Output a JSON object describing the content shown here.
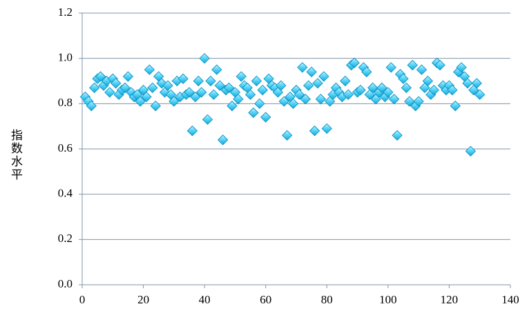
{
  "chart_data": {
    "type": "scatter",
    "y_label": "指数水平",
    "x": [
      1,
      2,
      3,
      4,
      5,
      6,
      7,
      8,
      9,
      10,
      11,
      12,
      13,
      14,
      15,
      16,
      17,
      18,
      19,
      20,
      21,
      22,
      23,
      24,
      25,
      26,
      27,
      28,
      29,
      30,
      31,
      32,
      33,
      34,
      35,
      36,
      37,
      38,
      39,
      40,
      41,
      42,
      43,
      44,
      45,
      46,
      47,
      48,
      49,
      50,
      51,
      52,
      53,
      54,
      55,
      56,
      57,
      58,
      59,
      60,
      61,
      62,
      63,
      64,
      65,
      66,
      67,
      68,
      69,
      70,
      71,
      72,
      73,
      74,
      75,
      76,
      77,
      78,
      79,
      80,
      81,
      82,
      83,
      84,
      85,
      86,
      87,
      88,
      89,
      90,
      91,
      92,
      93,
      94,
      95,
      96,
      97,
      98,
      99,
      100,
      101,
      102,
      103,
      104,
      105,
      106,
      107,
      108,
      109,
      110,
      111,
      112,
      113,
      114,
      115,
      116,
      117,
      118,
      119,
      120,
      121,
      122,
      123,
      124,
      125,
      126,
      127,
      128,
      129,
      130
    ],
    "values": [
      0.83,
      0.81,
      0.79,
      0.87,
      0.91,
      0.92,
      0.88,
      0.9,
      0.85,
      0.91,
      0.89,
      0.84,
      0.86,
      0.87,
      0.92,
      0.85,
      0.83,
      0.84,
      0.81,
      0.86,
      0.83,
      0.95,
      0.87,
      0.79,
      0.92,
      0.89,
      0.85,
      0.88,
      0.84,
      0.81,
      0.9,
      0.83,
      0.91,
      0.84,
      0.85,
      0.68,
      0.83,
      0.9,
      0.85,
      1.0,
      0.73,
      0.9,
      0.84,
      0.95,
      0.88,
      0.64,
      0.86,
      0.87,
      0.79,
      0.85,
      0.82,
      0.92,
      0.88,
      0.87,
      0.84,
      0.76,
      0.9,
      0.8,
      0.86,
      0.74,
      0.91,
      0.88,
      0.87,
      0.85,
      0.88,
      0.81,
      0.66,
      0.83,
      0.8,
      0.86,
      0.84,
      0.96,
      0.82,
      0.88,
      0.94,
      0.68,
      0.89,
      0.82,
      0.92,
      0.69,
      0.81,
      0.84,
      0.87,
      0.85,
      0.83,
      0.9,
      0.84,
      0.97,
      0.98,
      0.85,
      0.86,
      0.96,
      0.94,
      0.84,
      0.87,
      0.82,
      0.85,
      0.87,
      0.83,
      0.85,
      0.96,
      0.82,
      0.66,
      0.93,
      0.91,
      0.87,
      0.81,
      0.97,
      0.79,
      0.81,
      0.95,
      0.87,
      0.9,
      0.84,
      0.86,
      0.98,
      0.97,
      0.88,
      0.86,
      0.88,
      0.86,
      0.79,
      0.94,
      0.96,
      0.92,
      0.89,
      0.59,
      0.86,
      0.89,
      0.84
    ],
    "color": "#4fd3f7",
    "xlim": [
      0,
      140
    ],
    "xticks": [
      0,
      20,
      40,
      60,
      80,
      100,
      120,
      140
    ],
    "ylim": [
      0,
      1.2
    ],
    "yticks": [
      {
        "value": 0,
        "label": "0.0"
      },
      0.2,
      0.4,
      0.6,
      0.8,
      {
        "value": 1,
        "label": "1.0"
      },
      1.2
    ],
    "grid": true
  }
}
